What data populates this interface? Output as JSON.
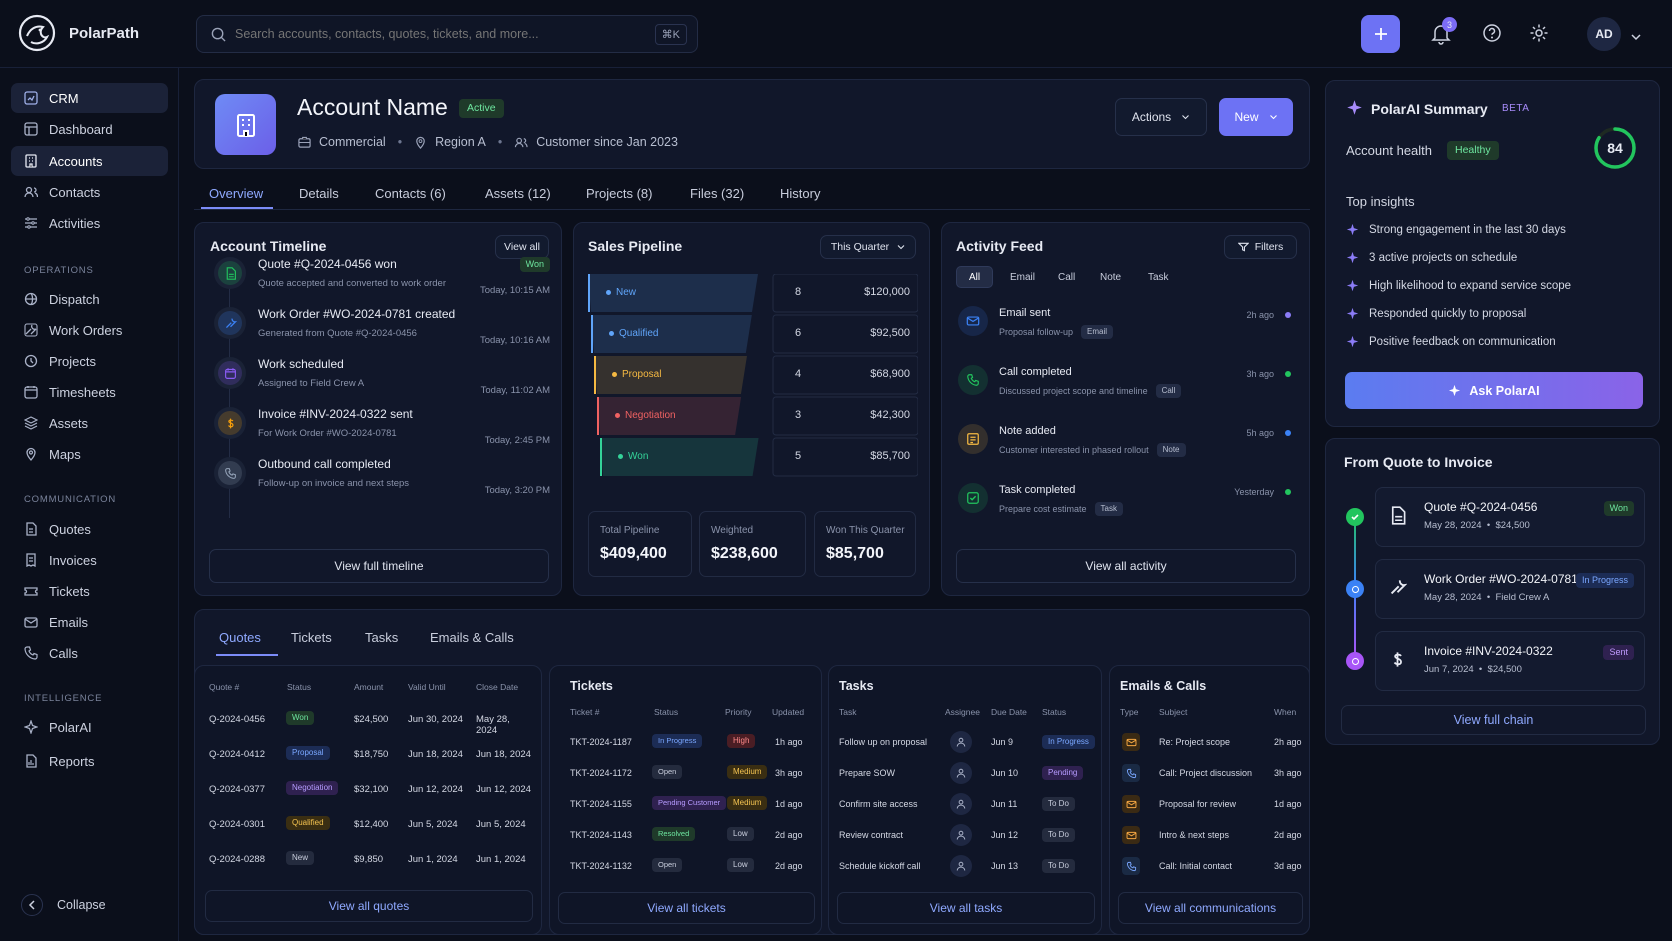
{
  "app": {
    "name": "PolarPath"
  },
  "search": {
    "placeholder": "Search accounts, contacts, quotes, tickets, and more...",
    "shortcut": "⌘K"
  },
  "header": {
    "notifications": "3",
    "user_initials": "AD"
  },
  "sidebar": {
    "top": [
      {
        "label": "CRM",
        "icon": "crm-icon"
      },
      {
        "label": "Dashboard",
        "icon": "dashboard-icon"
      },
      {
        "label": "Accounts",
        "icon": "accounts-icon"
      },
      {
        "label": "Contacts",
        "icon": "contacts-icon"
      },
      {
        "label": "Activities",
        "icon": "activities-icon"
      }
    ],
    "operations_title": "OPERATIONS",
    "operations": [
      {
        "label": "Dispatch"
      },
      {
        "label": "Work Orders"
      },
      {
        "label": "Projects"
      },
      {
        "label": "Timesheets"
      },
      {
        "label": "Assets"
      },
      {
        "label": "Maps"
      }
    ],
    "communication_title": "COMMUNICATION",
    "communication": [
      {
        "label": "Quotes"
      },
      {
        "label": "Invoices"
      },
      {
        "label": "Tickets"
      },
      {
        "label": "Emails"
      },
      {
        "label": "Calls"
      }
    ],
    "intelligence_title": "INTELLIGENCE",
    "intelligence": [
      {
        "label": "PolarAI"
      },
      {
        "label": "Reports"
      }
    ],
    "collapse": "Collapse"
  },
  "account": {
    "name": "Account Name",
    "status": "Active",
    "type": "Commercial",
    "region": "Region A",
    "since": "Customer since Jan 2023",
    "actions_label": "Actions",
    "new_label": "New"
  },
  "tabs": [
    "Overview",
    "Details",
    "Contacts (6)",
    "Assets (12)",
    "Projects (8)",
    "Files (32)",
    "History"
  ],
  "timeline": {
    "title": "Account Timeline",
    "view_all": "View all",
    "items": [
      {
        "title": "Quote #Q-2024-0456 won",
        "sub": "Quote accepted and converted to work order",
        "time": "Today, 10:15 AM",
        "badge": "Won",
        "color": "#22c55e"
      },
      {
        "title": "Work Order #WO-2024-0781 created",
        "sub": "Generated from Quote #Q-2024-0456",
        "time": "Today, 10:16 AM",
        "color": "#3b82f6"
      },
      {
        "title": "Work scheduled",
        "sub": "Assigned to Field Crew A",
        "time": "Today, 11:02 AM",
        "color": "#8b5cf6"
      },
      {
        "title": "Invoice #INV-2024-0322 sent",
        "sub": "For Work Order #WO-2024-0781",
        "time": "Today, 2:45 PM",
        "color": "#f59e0b"
      },
      {
        "title": "Outbound call completed",
        "sub": "Follow-up on invoice and next steps",
        "time": "Today, 3:20 PM",
        "color": "#94a3b8"
      }
    ],
    "footer": "View full timeline"
  },
  "pipeline": {
    "title": "Sales Pipeline",
    "period": "This Quarter",
    "stages": [
      {
        "name": "New",
        "count": "8",
        "amount": "$120,000",
        "color": "#60a5fa"
      },
      {
        "name": "Qualified",
        "count": "6",
        "amount": "$92,500",
        "color": "#60a5fa"
      },
      {
        "name": "Proposal",
        "count": "4",
        "amount": "$68,900",
        "color": "#f5b942"
      },
      {
        "name": "Negotiation",
        "count": "3",
        "amount": "$42,300",
        "color": "#f06262"
      },
      {
        "name": "Won",
        "count": "5",
        "amount": "$85,700",
        "color": "#34d399"
      }
    ],
    "stats": [
      {
        "label": "Total Pipeline",
        "value": "$409,400"
      },
      {
        "label": "Weighted",
        "value": "$238,600"
      },
      {
        "label": "Won This Quarter",
        "value": "$85,700"
      }
    ]
  },
  "activity": {
    "title": "Activity Feed",
    "filters_label": "Filters",
    "chips": [
      "All",
      "Email",
      "Call",
      "Note",
      "Task"
    ],
    "items": [
      {
        "title": "Email sent",
        "sub": "Proposal follow-up",
        "tag": "Email",
        "time": "2h ago",
        "color": "#3b82f6",
        "dot": "#8b7cf6"
      },
      {
        "title": "Call completed",
        "sub": "Discussed project scope and timeline",
        "tag": "Call",
        "time": "3h ago",
        "color": "#22c55e",
        "dot": "#22c55e"
      },
      {
        "title": "Note added",
        "sub": "Customer interested in phased rollout",
        "tag": "Note",
        "time": "5h ago",
        "color": "#f5b942",
        "dot": "#3b82f6"
      },
      {
        "title": "Task completed",
        "sub": "Prepare cost estimate",
        "tag": "Task",
        "time": "Yesterday",
        "color": "#22c55e",
        "dot": "#22c55e"
      }
    ],
    "footer": "View all activity"
  },
  "ai": {
    "title": "PolarAI Summary",
    "beta": "BETA",
    "health_label": "Account health",
    "health_status": "Healthy",
    "score": "84",
    "score_pct": 84,
    "insights_title": "Top insights",
    "insights": [
      "Strong engagement in the last 30 days",
      "3 active projects on schedule",
      "High likelihood to expand service scope",
      "Responded quickly to proposal",
      "Positive feedback on communication"
    ],
    "ask": "Ask PolarAI"
  },
  "chain": {
    "title": "From Quote to Invoice",
    "items": [
      {
        "title": "Quote #Q-2024-0456",
        "meta": "May 28, 2024  •  $24,500",
        "badge": "Won",
        "color": "#22c55e"
      },
      {
        "title": "Work Order #WO-2024-0781",
        "meta": "May 28, 2024  •  Field Crew A",
        "badge": "In Progress",
        "color": "#3b82f6"
      },
      {
        "title": "Invoice #INV-2024-0322",
        "meta": "Jun 7, 2024  •  $24,500",
        "badge": "Sent",
        "color": "#a855f7"
      }
    ],
    "footer": "View full chain"
  },
  "bottom_tabs": [
    "Quotes",
    "Tickets",
    "Tasks",
    "Emails & Calls"
  ],
  "quotes": {
    "headers": [
      "Quote #",
      "Status",
      "Amount",
      "Valid Until",
      "Close Date"
    ],
    "rows": [
      {
        "id": "Q-2024-0456",
        "status": "Won",
        "amount": "$24,500",
        "valid": "Jun 30, 2024",
        "close": "May 28, 2024"
      },
      {
        "id": "Q-2024-0412",
        "status": "Proposal",
        "amount": "$18,750",
        "valid": "Jun 18, 2024",
        "close": "Jun 18, 2024"
      },
      {
        "id": "Q-2024-0377",
        "status": "Negotiation",
        "amount": "$32,100",
        "valid": "Jun 12, 2024",
        "close": "Jun 12, 2024"
      },
      {
        "id": "Q-2024-0301",
        "status": "Qualified",
        "amount": "$12,400",
        "valid": "Jun 5, 2024",
        "close": "Jun 5, 2024"
      },
      {
        "id": "Q-2024-0288",
        "status": "New",
        "amount": "$9,850",
        "valid": "Jun 1, 2024",
        "close": "Jun 1, 2024"
      }
    ],
    "footer": "View all quotes"
  },
  "tickets": {
    "title": "Tickets",
    "headers": [
      "Ticket #",
      "Status",
      "Priority",
      "Updated"
    ],
    "rows": [
      {
        "id": "TKT-2024-1187",
        "status": "In Progress",
        "priority": "High",
        "updated": "1h ago"
      },
      {
        "id": "TKT-2024-1172",
        "status": "Open",
        "priority": "Medium",
        "updated": "3h ago"
      },
      {
        "id": "TKT-2024-1155",
        "status": "Pending Customer",
        "priority": "Medium",
        "updated": "1d ago"
      },
      {
        "id": "TKT-2024-1143",
        "status": "Resolved",
        "priority": "Low",
        "updated": "2d ago"
      },
      {
        "id": "TKT-2024-1132",
        "status": "Open",
        "priority": "Low",
        "updated": "2d ago"
      }
    ],
    "footer": "View all tickets"
  },
  "tasks": {
    "title": "Tasks",
    "headers": [
      "Task",
      "Assignee",
      "Due Date",
      "Status"
    ],
    "rows": [
      {
        "task": "Follow up on proposal",
        "due": "Jun 9",
        "status": "In Progress"
      },
      {
        "task": "Prepare SOW",
        "due": "Jun 10",
        "status": "Pending"
      },
      {
        "task": "Confirm site access",
        "due": "Jun 11",
        "status": "To Do"
      },
      {
        "task": "Review contract",
        "due": "Jun 12",
        "status": "To Do"
      },
      {
        "task": "Schedule kickoff call",
        "due": "Jun 13",
        "status": "To Do"
      }
    ],
    "footer": "View all tasks"
  },
  "comms": {
    "title": "Emails & Calls",
    "headers": [
      "Type",
      "Subject",
      "When"
    ],
    "rows": [
      {
        "type": "email",
        "subject": "Re: Project scope",
        "when": "2h ago"
      },
      {
        "type": "call",
        "subject": "Call: Project discussion",
        "when": "3h ago"
      },
      {
        "type": "email",
        "subject": "Proposal for review",
        "when": "1d ago"
      },
      {
        "type": "email",
        "subject": "Intro & next steps",
        "when": "2d ago"
      },
      {
        "type": "call",
        "subject": "Call: Initial contact",
        "when": "3d ago"
      }
    ],
    "footer": "View all communications"
  }
}
